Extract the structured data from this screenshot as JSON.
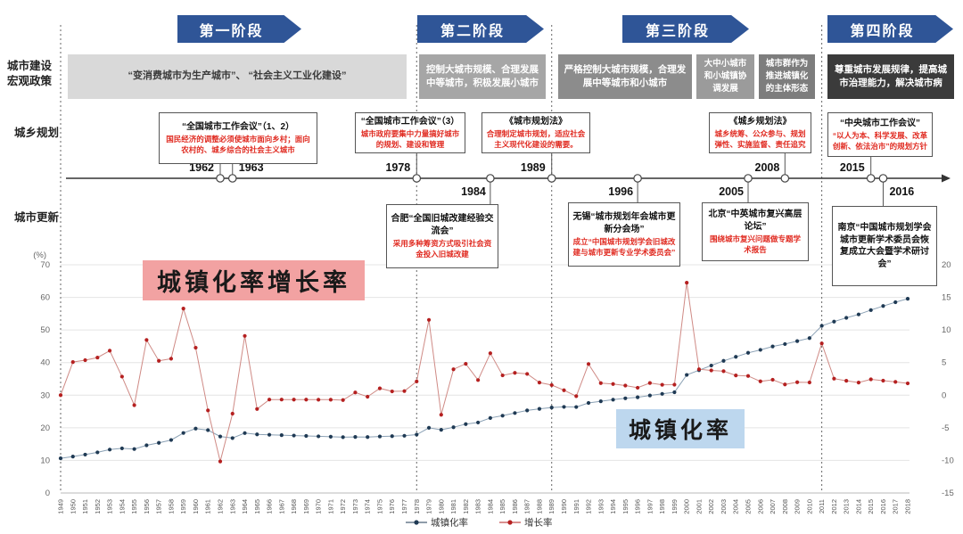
{
  "figure": {
    "row_labels": {
      "macro_line1": "城市建设",
      "macro_line2": "宏观政策",
      "planning": "城乡规划",
      "renewal": "城市更新"
    },
    "phases": [
      "第一阶段",
      "第二阶段",
      "第三阶段",
      "第四阶段"
    ],
    "policy_boxes": [
      {
        "text": "“变消费城市为生产城市”、 “社会主义工业化建设”"
      },
      {
        "text": "控制大城市规模、合理发展中等城市，积极发展小城市"
      },
      {
        "text": "严格控制大城市规模，合理发展中等城市和小城市"
      },
      {
        "text": "大中小城市和小城镇协调发展"
      },
      {
        "text": "城市群作为推进城镇化的主体形态"
      },
      {
        "text": "尊重城市发展规律，提高城市治理能力，解决城市病"
      }
    ],
    "planning_events": [
      {
        "years": "1962 / 1963",
        "title": "“全国城市工作会议”（1、2）",
        "detail": "国民经济的调整必须使城市面向乡村；面向农村的、城乡综合的社会主义城市"
      },
      {
        "years": "1978",
        "title": "“全国城市工作会议”（3）",
        "detail": "城市政府要集中力量搞好城市的规划、建设和管理"
      },
      {
        "years": "1989",
        "title": "《城市规划法》",
        "detail": "合理制定城市规划，适应社会主义现代化建设的需要。"
      },
      {
        "years": "2008",
        "title": "《城乡规划法》",
        "detail": "城乡统筹、公众参与、规划弹性、实施监督、责任追究"
      },
      {
        "years": "2015",
        "title": "“中央城市工作会议”",
        "detail": "“以人为本、科学发展、改革创新、依法治市”的规划方针"
      }
    ],
    "renewal_events": [
      {
        "year": "1984",
        "title": "合肥“全国旧城改建经验交流会”",
        "detail": "采用多种筹资方式吸引社会资金投入旧城改建"
      },
      {
        "year": "1996",
        "title": "无锡“城市规划年会城市更新分会场”",
        "detail": "成立“中国城市规划学会旧城改建与城市更新专业学术委员会”"
      },
      {
        "year": "2005",
        "title": "北京“中英城市复兴高层论坛”",
        "detail": "围绕城市复兴问题做专题学术报告"
      },
      {
        "year": "2016",
        "title": "南京“中国城市规划学会城市更新学术委员会恢复成立大会暨学术研讨会”",
        "detail": ""
      }
    ],
    "timeline_years": [
      "1962",
      "1963",
      "1978",
      "1984",
      "1989",
      "1996",
      "2005",
      "2008",
      "2015",
      "2016"
    ]
  },
  "chart_data": {
    "type": "line",
    "x": [
      1949,
      1950,
      1951,
      1952,
      1953,
      1954,
      1955,
      1956,
      1957,
      1958,
      1959,
      1960,
      1961,
      1962,
      1963,
      1964,
      1965,
      1966,
      1967,
      1968,
      1969,
      1970,
      1971,
      1972,
      1973,
      1974,
      1975,
      1976,
      1977,
      1978,
      1979,
      1980,
      1981,
      1982,
      1983,
      1984,
      1985,
      1986,
      1987,
      1988,
      1989,
      1990,
      1991,
      1992,
      1993,
      1994,
      1995,
      1996,
      1997,
      1998,
      1999,
      2000,
      2001,
      2002,
      2003,
      2004,
      2005,
      2006,
      2007,
      2008,
      2009,
      2010,
      2011,
      2012,
      2013,
      2014,
      2015,
      2016,
      2017,
      2018
    ],
    "series": [
      {
        "name": "城镇化率",
        "axis": "left",
        "marker_color": "#1f3a54",
        "line_color": "#8aa0b4",
        "values": [
          10.64,
          11.18,
          11.78,
          12.46,
          13.31,
          13.69,
          13.48,
          14.62,
          15.39,
          16.25,
          18.41,
          19.75,
          19.29,
          17.33,
          16.84,
          18.37,
          17.98,
          17.86,
          17.74,
          17.62,
          17.5,
          17.38,
          17.26,
          17.13,
          17.2,
          17.16,
          17.34,
          17.44,
          17.55,
          17.92,
          19.99,
          19.39,
          20.16,
          21.13,
          21.62,
          23.01,
          23.71,
          24.52,
          25.32,
          25.81,
          26.21,
          26.41,
          26.37,
          27.63,
          28.14,
          28.62,
          29.04,
          29.37,
          29.92,
          30.4,
          30.89,
          36.22,
          37.66,
          39.09,
          40.53,
          41.76,
          42.99,
          43.9,
          44.94,
          45.68,
          46.59,
          47.5,
          51.27,
          52.57,
          53.73,
          54.77,
          56.1,
          57.35,
          58.52,
          59.58
        ]
      },
      {
        "name": "增长率",
        "axis": "right",
        "marker_color": "#b52020",
        "line_color": "#cf8a85",
        "values": [
          0,
          5.08,
          5.37,
          5.77,
          6.82,
          2.85,
          -1.53,
          8.46,
          5.27,
          5.59,
          13.29,
          7.28,
          -2.33,
          -10.16,
          -2.83,
          9.09,
          -2.12,
          -0.67,
          -0.67,
          -0.68,
          -0.68,
          -0.69,
          -0.69,
          -0.75,
          0.41,
          -0.23,
          1.05,
          0.58,
          0.63,
          2.11,
          11.55,
          -3.0,
          3.97,
          4.81,
          2.32,
          6.43,
          3.04,
          3.42,
          3.26,
          1.94,
          1.55,
          0.76,
          -0.15,
          4.78,
          1.85,
          1.71,
          1.47,
          1.14,
          1.87,
          1.6,
          1.61,
          17.25,
          3.98,
          3.8,
          3.68,
          3.03,
          2.95,
          2.12,
          2.37,
          1.65,
          1.99,
          1.95,
          7.94,
          2.54,
          2.21,
          1.94,
          2.43,
          2.23,
          2.04,
          1.81
        ]
      }
    ],
    "left_axis": {
      "unit": "(%)",
      "ticks": [
        0,
        10,
        20,
        30,
        40,
        50,
        60,
        70
      ],
      "range": [
        0,
        70
      ]
    },
    "right_axis": {
      "ticks": [
        -15,
        -10,
        -5,
        0,
        5,
        10,
        15,
        20
      ],
      "range": [
        -15,
        20
      ]
    },
    "dashed_divider_years": [
      1949,
      1978,
      1989,
      2011
    ],
    "annotations": {
      "growth_label": "城镇化率增长率",
      "rate_label": "城镇化率"
    },
    "legend": [
      {
        "label": "城镇化率",
        "color": "#1f3a54"
      },
      {
        "label": "增长率",
        "color": "#b52020"
      }
    ],
    "grid": true,
    "legend_position": "bottom-center"
  }
}
